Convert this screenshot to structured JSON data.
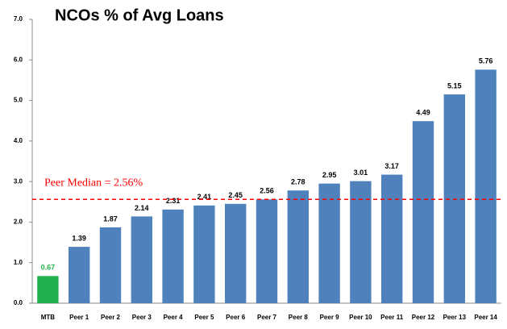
{
  "chart_data": {
    "type": "bar",
    "title": "NCOs % of Avg Loans",
    "categories": [
      "MTB",
      "Peer 1",
      "Peer 2",
      "Peer 3",
      "Peer 4",
      "Peer 5",
      "Peer 6",
      "Peer 7",
      "Peer 8",
      "Peer 9",
      "Peer 10",
      "Peer 11",
      "Peer 12",
      "Peer 13",
      "Peer 14"
    ],
    "values": [
      0.67,
      1.39,
      1.87,
      2.14,
      2.31,
      2.41,
      2.45,
      2.56,
      2.78,
      2.95,
      3.01,
      3.17,
      4.49,
      5.15,
      5.76
    ],
    "colors": [
      "#22b14c",
      "#4f81bd",
      "#4f81bd",
      "#4f81bd",
      "#4f81bd",
      "#4f81bd",
      "#4f81bd",
      "#4f81bd",
      "#4f81bd",
      "#4f81bd",
      "#4f81bd",
      "#4f81bd",
      "#4f81bd",
      "#4f81bd",
      "#4f81bd"
    ],
    "ylim": [
      0,
      7
    ],
    "yticks": [
      {
        "value": 0,
        "label": "0.0"
      },
      {
        "value": 1,
        "label": "1.0"
      },
      {
        "value": 2,
        "label": "2.0"
      },
      {
        "value": 3,
        "label": "3.0"
      },
      {
        "value": 4,
        "label": "4.0"
      },
      {
        "value": 5,
        "label": "5.0"
      },
      {
        "value": 6,
        "label": "6.0"
      },
      {
        "value": 7,
        "label": "7.0"
      }
    ],
    "grid": false,
    "reference_line": {
      "value": 2.56,
      "label": "Peer Median = 2.56%",
      "color": "#ff0000"
    }
  }
}
